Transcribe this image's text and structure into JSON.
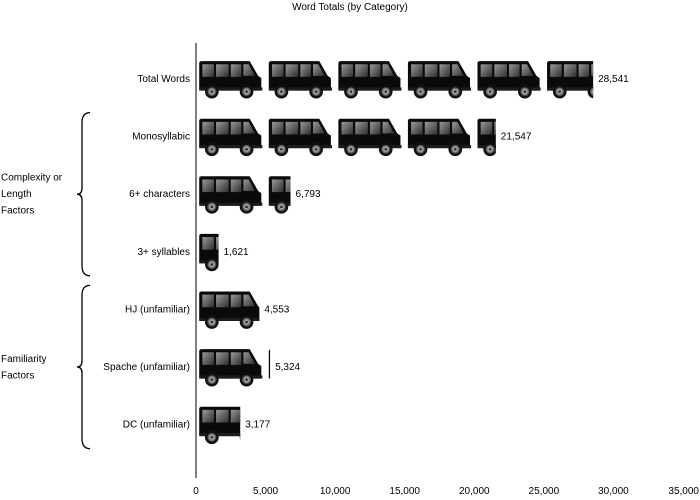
{
  "chart_data": {
    "type": "bar",
    "orientation": "horizontal",
    "title": "Word Totals (by Category)",
    "categories": [
      "Total Words",
      "Monosyllabic",
      "6+ characters",
      "3+ syllables",
      "HJ (unfamiliar)",
      "Spache (unfamiliar)",
      "DC (unfamiliar)"
    ],
    "values": [
      28541,
      21547,
      6793,
      1621,
      4553,
      5324,
      3177
    ],
    "data_labels": [
      "28,541",
      "21,547",
      "6,793",
      "1,621",
      "4,553",
      "5,324",
      "3,177"
    ],
    "groups": [
      {
        "label_lines": [
          "Complexity or",
          "Length",
          "Factors"
        ],
        "categories": [
          "Monosyllabic",
          "6+ characters",
          "3+ syllables"
        ]
      },
      {
        "label_lines": [
          "Familiarity",
          "Factors"
        ],
        "categories": [
          "HJ (unfamiliar)",
          "Spache (unfamiliar)",
          "DC (unfamiliar)"
        ]
      }
    ],
    "unit_per_icon": 5000,
    "icon": "van-icon",
    "xlim": [
      0,
      35000
    ],
    "xticks": [
      0,
      5000,
      10000,
      15000,
      20000,
      25000,
      30000,
      35000
    ],
    "xtick_labels": [
      "0",
      "5,000",
      "10,000",
      "15,000",
      "20,000",
      "25,000",
      "30,000",
      "35,000"
    ],
    "grid": false,
    "colors": {
      "icon_body": "#0a0a0a",
      "window": "#5a5a5a",
      "wheel": "#9a9a9a",
      "axis": "#000000"
    }
  }
}
